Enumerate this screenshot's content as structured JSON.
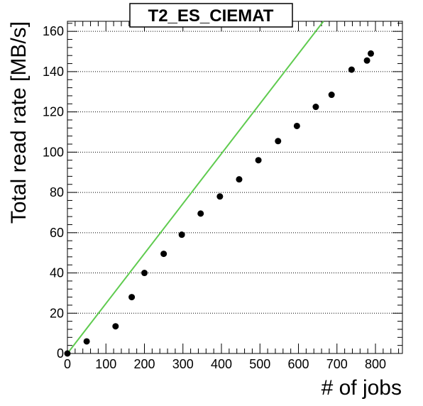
{
  "chart_data": {
    "type": "scatter",
    "title": "T2_ES_CIEMAT",
    "xlabel": "# of jobs",
    "ylabel": "Total read rate [MB/s]",
    "xlim": [
      0,
      870
    ],
    "ylim": [
      0,
      165
    ],
    "x_ticks": [
      0,
      100,
      200,
      300,
      400,
      500,
      600,
      700,
      800
    ],
    "y_ticks": [
      0,
      20,
      40,
      60,
      80,
      100,
      120,
      140,
      160
    ],
    "grid": "y-dotted",
    "series": [
      {
        "type": "scatter",
        "color": "#000000",
        "points": [
          [
            0,
            0
          ],
          [
            50,
            6
          ],
          [
            125,
            13.5
          ],
          [
            167,
            28
          ],
          [
            200,
            40
          ],
          [
            250,
            49.5
          ],
          [
            297,
            59
          ],
          [
            346,
            69.5
          ],
          [
            396,
            78
          ],
          [
            446,
            86.5
          ],
          [
            496,
            96
          ],
          [
            547,
            105.5
          ],
          [
            596,
            113
          ],
          [
            645,
            122.5
          ],
          [
            686,
            128.5
          ],
          [
            738,
            141
          ],
          [
            778,
            145.5
          ],
          [
            788,
            149
          ]
        ]
      },
      {
        "type": "line",
        "color": "#5fcb4f",
        "points": [
          [
            0,
            0
          ],
          [
            665,
            165
          ]
        ]
      }
    ]
  }
}
